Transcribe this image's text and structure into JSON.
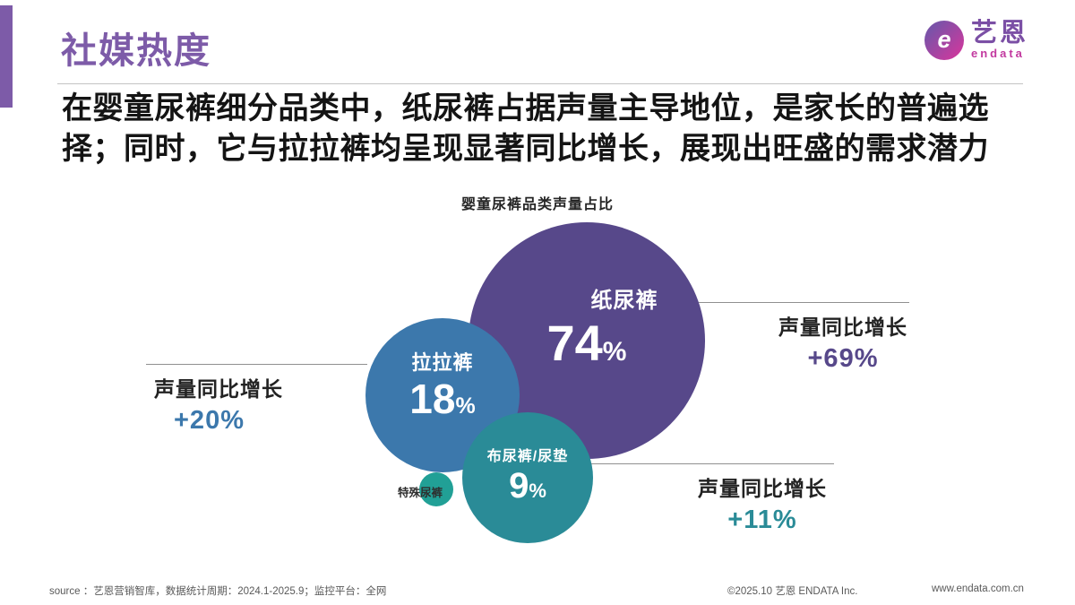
{
  "header": {
    "title": "社媒热度",
    "logo": {
      "name": "艺恩",
      "sub": "endata",
      "icon_glyph": "e"
    }
  },
  "summary": {
    "lines": [
      "在婴童尿裤细分品类中，纸尿裤占据声量主导地位，是家长的普遍选",
      "择；同时，它与拉拉裤均呈现显著同比增长，展现出旺盛的需求潜力"
    ]
  },
  "chart_data": {
    "type": "bubble",
    "title": "婴童尿裤品类声量占比",
    "legend_position": "none",
    "series": [
      {
        "name": "纸尿裤",
        "share_pct": 74,
        "value": "74",
        "unit": "%",
        "yoy_label": "声量同比增长",
        "yoy": "+69%",
        "color": "#57488a"
      },
      {
        "name": "拉拉裤",
        "share_pct": 18,
        "value": "18",
        "unit": "%",
        "yoy_label": "声量同比增长",
        "yoy": "+20%",
        "color": "#3c78ac"
      },
      {
        "name": "布尿裤/尿垫",
        "share_pct": 9,
        "value": "9",
        "unit": "%",
        "yoy_label": "声量同比增长",
        "yoy": "+11%",
        "color": "#2a8b97"
      },
      {
        "name": "特殊尿裤",
        "share_pct": null,
        "value": "",
        "unit": "",
        "color": "#21a096"
      }
    ]
  },
  "footer": {
    "source": "source ：艺恩营销智库，数据统计周期：2024.1-2025.9；监控平台：全网",
    "copyright": "©2025.10 艺恩 ENDATA Inc.",
    "website": "www.endata.com.cn"
  }
}
